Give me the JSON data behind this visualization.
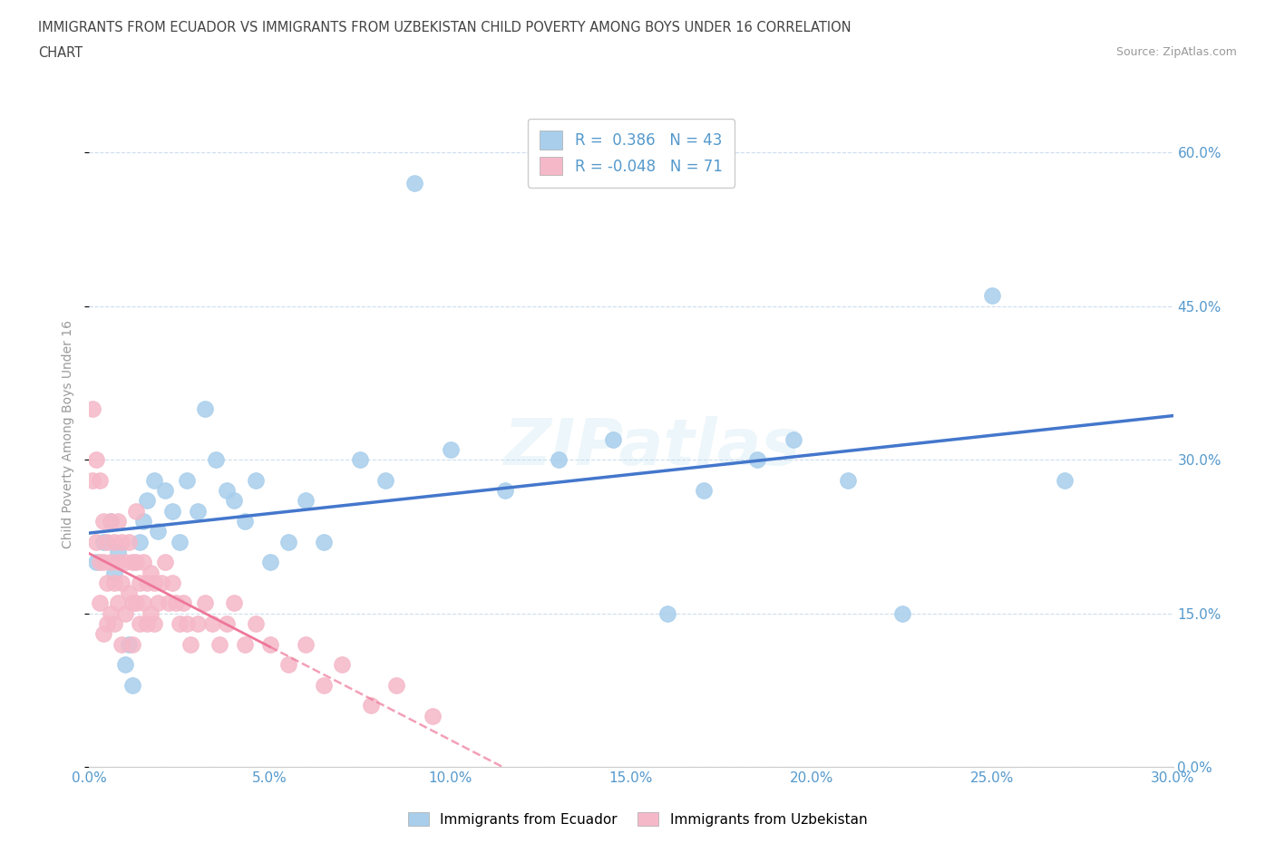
{
  "title_line1": "IMMIGRANTS FROM ECUADOR VS IMMIGRANTS FROM UZBEKISTAN CHILD POVERTY AMONG BOYS UNDER 16 CORRELATION",
  "title_line2": "CHART",
  "source": "Source: ZipAtlas.com",
  "ylabel": "Child Poverty Among Boys Under 16",
  "xmin": 0.0,
  "xmax": 0.3,
  "ymin": 0.0,
  "ymax": 0.65,
  "yticks": [
    0.0,
    0.15,
    0.3,
    0.45,
    0.6
  ],
  "xticks": [
    0.0,
    0.05,
    0.1,
    0.15,
    0.2,
    0.25,
    0.3
  ],
  "ecuador_R": 0.386,
  "ecuador_N": 43,
  "uzbekistan_R": -0.048,
  "uzbekistan_N": 71,
  "ecuador_color": "#A8CEEC",
  "uzbekistan_color": "#F5B8C8",
  "ecuador_line_color": "#4477CC",
  "uzbekistan_line_color": "#EE7799",
  "watermark": "ZIPatlas",
  "ecuador_scatter_x": [
    0.002,
    0.004,
    0.006,
    0.007,
    0.008,
    0.01,
    0.011,
    0.012,
    0.014,
    0.015,
    0.016,
    0.018,
    0.019,
    0.021,
    0.023,
    0.025,
    0.027,
    0.03,
    0.032,
    0.035,
    0.038,
    0.04,
    0.043,
    0.046,
    0.05,
    0.055,
    0.06,
    0.065,
    0.075,
    0.082,
    0.09,
    0.1,
    0.115,
    0.13,
    0.145,
    0.16,
    0.17,
    0.185,
    0.195,
    0.21,
    0.225,
    0.25,
    0.27
  ],
  "ecuador_scatter_y": [
    0.2,
    0.22,
    0.24,
    0.19,
    0.21,
    0.1,
    0.12,
    0.08,
    0.22,
    0.24,
    0.26,
    0.28,
    0.23,
    0.27,
    0.25,
    0.22,
    0.28,
    0.25,
    0.35,
    0.3,
    0.27,
    0.26,
    0.24,
    0.28,
    0.2,
    0.22,
    0.26,
    0.22,
    0.3,
    0.28,
    0.57,
    0.31,
    0.27,
    0.3,
    0.32,
    0.15,
    0.27,
    0.3,
    0.32,
    0.28,
    0.15,
    0.46,
    0.28
  ],
  "uzbekistan_scatter_x": [
    0.001,
    0.001,
    0.002,
    0.002,
    0.003,
    0.003,
    0.003,
    0.004,
    0.004,
    0.004,
    0.005,
    0.005,
    0.005,
    0.006,
    0.006,
    0.006,
    0.007,
    0.007,
    0.007,
    0.008,
    0.008,
    0.008,
    0.009,
    0.009,
    0.009,
    0.01,
    0.01,
    0.011,
    0.011,
    0.012,
    0.012,
    0.012,
    0.013,
    0.013,
    0.013,
    0.014,
    0.014,
    0.015,
    0.015,
    0.016,
    0.016,
    0.017,
    0.017,
    0.018,
    0.018,
    0.019,
    0.02,
    0.021,
    0.022,
    0.023,
    0.024,
    0.025,
    0.026,
    0.027,
    0.028,
    0.03,
    0.032,
    0.034,
    0.036,
    0.038,
    0.04,
    0.043,
    0.046,
    0.05,
    0.055,
    0.06,
    0.065,
    0.07,
    0.078,
    0.085,
    0.095
  ],
  "uzbekistan_scatter_y": [
    0.35,
    0.28,
    0.3,
    0.22,
    0.28,
    0.2,
    0.16,
    0.24,
    0.2,
    0.13,
    0.22,
    0.18,
    0.14,
    0.24,
    0.2,
    0.15,
    0.22,
    0.18,
    0.14,
    0.24,
    0.2,
    0.16,
    0.22,
    0.18,
    0.12,
    0.2,
    0.15,
    0.22,
    0.17,
    0.2,
    0.16,
    0.12,
    0.2,
    0.16,
    0.25,
    0.18,
    0.14,
    0.2,
    0.16,
    0.18,
    0.14,
    0.19,
    0.15,
    0.18,
    0.14,
    0.16,
    0.18,
    0.2,
    0.16,
    0.18,
    0.16,
    0.14,
    0.16,
    0.14,
    0.12,
    0.14,
    0.16,
    0.14,
    0.12,
    0.14,
    0.16,
    0.12,
    0.14,
    0.12,
    0.1,
    0.12,
    0.08,
    0.1,
    0.06,
    0.08,
    0.05
  ],
  "background_color": "#FFFFFF",
  "grid_color": "#CCDDEE",
  "tick_color": "#5599CC",
  "title_color": "#444444",
  "figsize": [
    14.06,
    9.3
  ],
  "dpi": 100
}
